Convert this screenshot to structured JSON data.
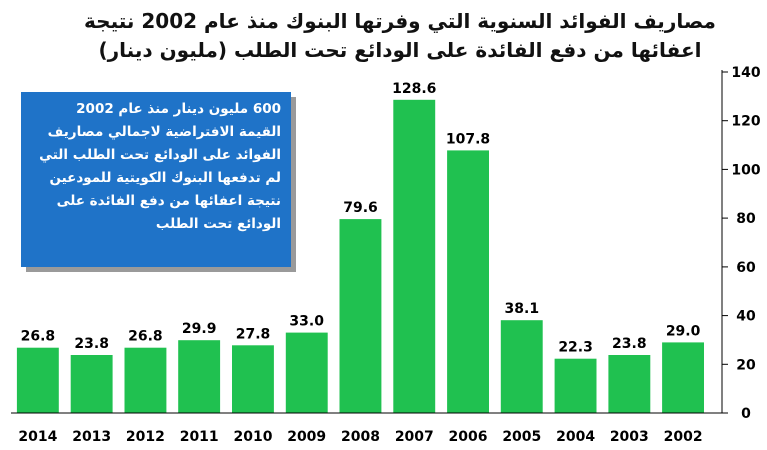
{
  "title_line1": "مصاريف الفوائد السنوية التي وفرتها البنوك منذ عام 2002 نتيجة",
  "title_line2": "اعفائها من دفع الفائدة على الودائع تحت الطلب (مليون دينار)",
  "callout": {
    "line1": "600 مليون دينار منذ عام 2002",
    "line2": "القيمة الافتراضية لاجمالي مصاريف",
    "line3": "الفوائد على الودائع تحت الطلب التي",
    "line4": "لم تدفعها البنوك الكويتية للمودعين",
    "line5": "نتيجة اعفائها من دفع الفائدة على",
    "line6": "الودائع تحت الطلب"
  },
  "colors": {
    "bar": "#20c150",
    "callout_bg": "#1f73c8",
    "axis": "#000000"
  },
  "chart_data": {
    "type": "bar",
    "title": "مصاريف الفوائد السنوية التي وفرتها البنوك منذ عام 2002 نتيجة اعفائها من دفع الفائدة على الودائع تحت الطلب (مليون دينار)",
    "categories": [
      "2014",
      "2013",
      "2012",
      "2011",
      "2010",
      "2009",
      "2008",
      "2007",
      "2006",
      "2005",
      "2004",
      "2003",
      "2002"
    ],
    "values": [
      26.8,
      23.8,
      26.8,
      29.9,
      27.8,
      33.0,
      79.6,
      128.6,
      107.8,
      38.1,
      22.3,
      23.8,
      29.0
    ],
    "value_labels": [
      "26.8",
      "23.8",
      "26.8",
      "29.9",
      "27.8",
      "33.0",
      "79.6",
      "128.6",
      "107.8",
      "38.1",
      "22.3",
      "23.8",
      "29.0"
    ],
    "y_ticks": [
      "0",
      "20",
      "40",
      "60",
      "80",
      "100",
      "120",
      "140"
    ],
    "ylim": [
      0,
      140
    ],
    "y_axis_side": "right",
    "grid": false,
    "legend": "none"
  }
}
